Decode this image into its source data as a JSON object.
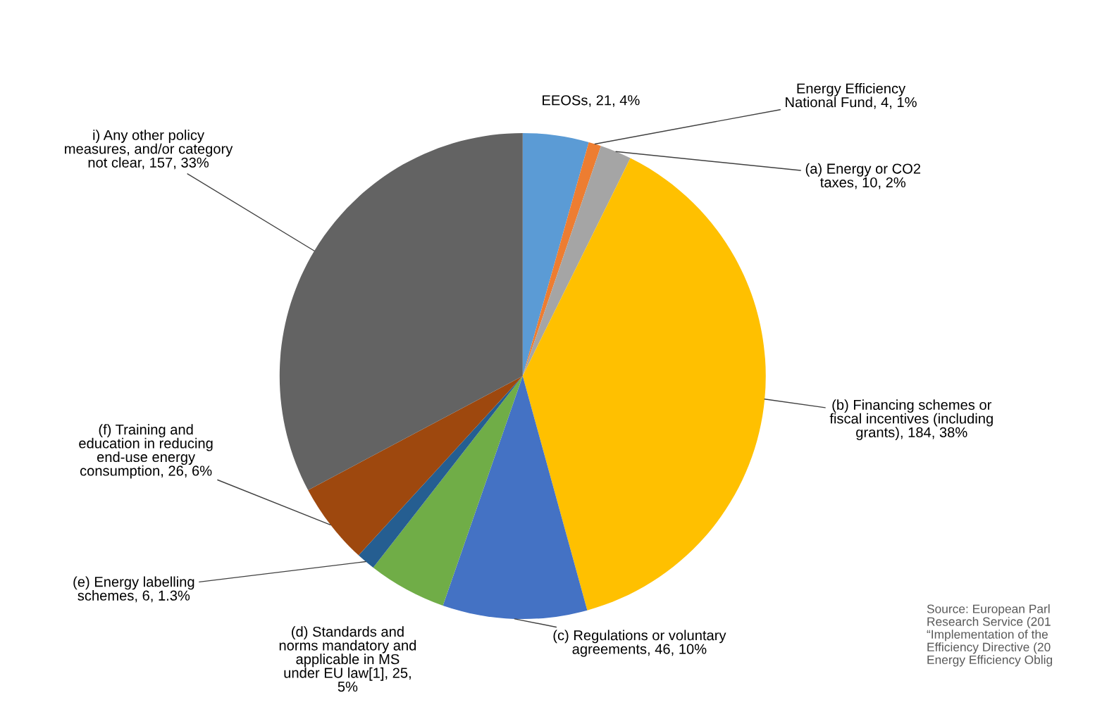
{
  "chart_data": {
    "type": "pie",
    "categories": [
      "EEOSs",
      "Energy Efficiency National Fund",
      "(a) Energy or CO2 taxes",
      "(b) Financing schemes or fiscal incentives (including grants)",
      "(c) Regulations or voluntary agreements",
      "(d) Standards and norms mandatory and applicable in MS under EU law[1]",
      "(e) Energy labelling schemes",
      "(f) Training and education in reducing end-use energy consumption",
      "i) Any other policy measures, and/or category not clear"
    ],
    "values": [
      21,
      4,
      10,
      184,
      46,
      25,
      6,
      26,
      157
    ],
    "colors": [
      "#5b9bd5",
      "#ed7d31",
      "#a5a5a5",
      "#ffc000",
      "#4472c4",
      "#70ad47",
      "#255e91",
      "#9e480e",
      "#636363"
    ],
    "value_labels": [
      "21, 4%",
      "4, 1%",
      "10, 2%",
      "184, 38%",
      "46, 10%",
      "25, 5%",
      "6, 1.3%",
      "26, 6%",
      "157, 33%"
    ],
    "annotations": [
      "Source: European Parl Research Service (201 “Implementation of the Efficiency Directive (20 Energy Efficiency Oblig"
    ]
  }
}
